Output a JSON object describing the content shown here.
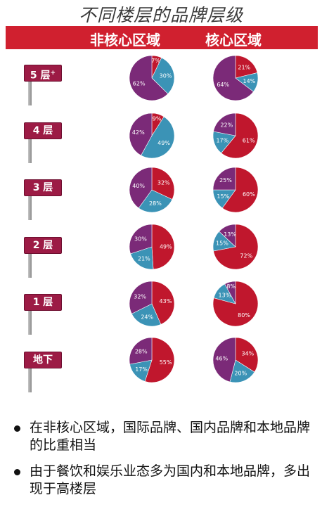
{
  "title": "不同楼层的品牌层级",
  "header": {
    "left": "非核心区域",
    "right": "核心区域"
  },
  "colors": {
    "red": "#c0172d",
    "blue": "#3b93b6",
    "purple": "#7b2a78"
  },
  "floors": [
    "5 层",
    "4 层",
    "3 层",
    "2 层",
    "1 层",
    "地下"
  ],
  "floor5_sup": "+",
  "chart_data": [
    {
      "type": "pie",
      "group": "非核心区域",
      "floor": "5 层",
      "slices": [
        {
          "color": "red",
          "value": 7
        },
        {
          "color": "blue",
          "value": 30
        },
        {
          "color": "purple",
          "value": 62
        }
      ]
    },
    {
      "type": "pie",
      "group": "核心区域",
      "floor": "5 层",
      "slices": [
        {
          "color": "red",
          "value": 21
        },
        {
          "color": "blue",
          "value": 14
        },
        {
          "color": "purple",
          "value": 64
        }
      ]
    },
    {
      "type": "pie",
      "group": "非核心区域",
      "floor": "4 层",
      "slices": [
        {
          "color": "red",
          "value": 9
        },
        {
          "color": "blue",
          "value": 49
        },
        {
          "color": "purple",
          "value": 42
        }
      ]
    },
    {
      "type": "pie",
      "group": "核心区域",
      "floor": "4 层",
      "slices": [
        {
          "color": "red",
          "value": 61
        },
        {
          "color": "blue",
          "value": 17
        },
        {
          "color": "purple",
          "value": 22
        }
      ]
    },
    {
      "type": "pie",
      "group": "非核心区域",
      "floor": "3 层",
      "slices": [
        {
          "color": "red",
          "value": 32
        },
        {
          "color": "blue",
          "value": 28
        },
        {
          "color": "purple",
          "value": 40
        }
      ]
    },
    {
      "type": "pie",
      "group": "核心区域",
      "floor": "3 层",
      "slices": [
        {
          "color": "red",
          "value": 60
        },
        {
          "color": "blue",
          "value": 15
        },
        {
          "color": "purple",
          "value": 25
        }
      ]
    },
    {
      "type": "pie",
      "group": "非核心区域",
      "floor": "2 层",
      "slices": [
        {
          "color": "red",
          "value": 49
        },
        {
          "color": "blue",
          "value": 21
        },
        {
          "color": "purple",
          "value": 30
        }
      ]
    },
    {
      "type": "pie",
      "group": "核心区域",
      "floor": "2 层",
      "slices": [
        {
          "color": "red",
          "value": 72
        },
        {
          "color": "blue",
          "value": 15
        },
        {
          "color": "purple",
          "value": 13
        }
      ]
    },
    {
      "type": "pie",
      "group": "非核心区域",
      "floor": "1 层",
      "slices": [
        {
          "color": "red",
          "value": 43
        },
        {
          "color": "blue",
          "value": 24
        },
        {
          "color": "purple",
          "value": 32
        }
      ]
    },
    {
      "type": "pie",
      "group": "核心区域",
      "floor": "1 层",
      "slices": [
        {
          "color": "red",
          "value": 80
        },
        {
          "color": "blue",
          "value": 13
        },
        {
          "color": "purple",
          "value": 8
        }
      ]
    },
    {
      "type": "pie",
      "group": "非核心区域",
      "floor": "地下",
      "slices": [
        {
          "color": "red",
          "value": 55
        },
        {
          "color": "blue",
          "value": 17
        },
        {
          "color": "purple",
          "value": 28
        }
      ]
    },
    {
      "type": "pie",
      "group": "核心区域",
      "floor": "地下",
      "slices": [
        {
          "color": "red",
          "value": 34
        },
        {
          "color": "blue",
          "value": 20
        },
        {
          "color": "purple",
          "value": 46
        }
      ]
    }
  ],
  "bullets": [
    "在非核心区域，国际品牌、国内品牌和本地品牌的比重相当",
    "由于餐饮和娱乐业态多为国内和本地品牌，多出现于高楼层"
  ]
}
